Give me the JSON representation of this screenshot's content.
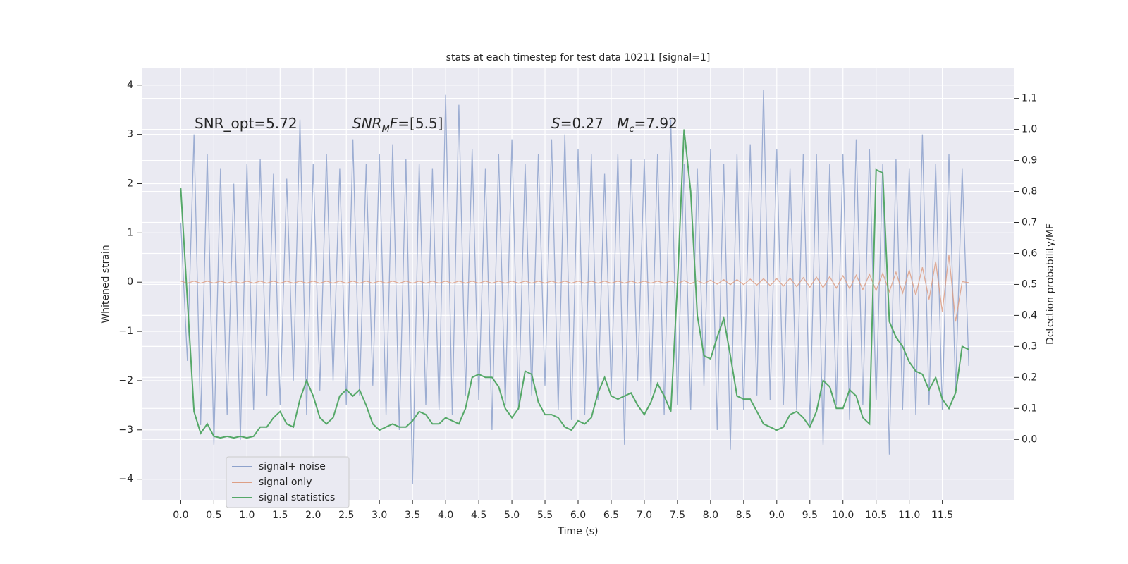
{
  "chart_data": {
    "type": "line",
    "title": "stats at each timestep for test data 10211 [signal=1]",
    "xlabel": "Time (s)",
    "ylabel": "Whitened strain",
    "y2label": "Detection probability/MF",
    "annotations": [
      [
        {
          "text": "SNR_opt=5.72"
        }
      ],
      [
        {
          "text": "SNR",
          "italic": true
        },
        {
          "text": "M",
          "italic": true,
          "sub": true
        },
        {
          "text": "F",
          "italic": true
        },
        {
          "text": "=[5.5]"
        }
      ],
      [
        {
          "text": "S",
          "italic": true
        },
        {
          "text": "=0.27   "
        },
        {
          "text": "M",
          "italic": true
        },
        {
          "text": "c",
          "italic": true,
          "sub": true
        },
        {
          "text": "=7.92"
        }
      ]
    ],
    "grid": true,
    "legend": "lower left",
    "xlim": [
      -0.59,
      12.59
    ],
    "ylim": [
      -4.42,
      4.34
    ],
    "y2lim": [
      -0.195,
      1.197
    ],
    "xticks": [
      {
        "value": 0,
        "label": "0.0"
      },
      0.5,
      {
        "value": 1,
        "label": "1.0"
      },
      1.5,
      {
        "value": 2,
        "label": "2.0"
      },
      2.5,
      {
        "value": 3,
        "label": "3.0"
      },
      3.5,
      {
        "value": 4,
        "label": "4.0"
      },
      4.5,
      {
        "value": 5,
        "label": "5.0"
      },
      5.5,
      {
        "value": 6,
        "label": "6.0"
      },
      6.5,
      {
        "value": 7,
        "label": "7.0"
      },
      7.5,
      {
        "value": 8,
        "label": "8.0"
      },
      8.5,
      {
        "value": 9,
        "label": "9.0"
      },
      9.5,
      {
        "value": 10,
        "label": "10.0"
      },
      10.5,
      {
        "value": 11,
        "label": "11.0"
      },
      11.5
    ],
    "yticks": [
      {
        "value": -4,
        "label": "−4"
      },
      {
        "value": -3,
        "label": "−3"
      },
      {
        "value": -2,
        "label": "−2"
      },
      {
        "value": -1,
        "label": "−1"
      },
      0,
      1,
      2,
      3,
      4
    ],
    "y2ticks": [
      {
        "value": 0,
        "label": "0.0"
      },
      0.1,
      0.2,
      0.3,
      0.4,
      0.5,
      0.6,
      0.7,
      0.8,
      0.9,
      {
        "value": 1,
        "label": "1.0"
      },
      1.1
    ],
    "x": [
      0,
      0.1,
      0.2,
      0.3,
      0.4,
      0.5,
      0.6,
      0.7,
      0.8,
      0.9,
      1,
      1.1,
      1.2,
      1.3,
      1.4,
      1.5,
      1.6,
      1.7,
      1.8,
      1.9,
      2,
      2.1,
      2.2,
      2.3,
      2.4,
      2.5,
      2.6,
      2.7,
      2.8,
      2.9,
      3,
      3.1,
      3.2,
      3.3,
      3.4,
      3.5,
      3.6,
      3.7,
      3.8,
      3.9,
      4,
      4.1,
      4.2,
      4.3,
      4.4,
      4.5,
      4.6,
      4.7,
      4.8,
      4.9,
      5,
      5.1,
      5.2,
      5.3,
      5.4,
      5.5,
      5.6,
      5.7,
      5.8,
      5.9,
      6,
      6.1,
      6.2,
      6.3,
      6.4,
      6.5,
      6.6,
      6.7,
      6.8,
      6.9,
      7,
      7.1,
      7.2,
      7.3,
      7.4,
      7.5,
      7.6,
      7.7,
      7.8,
      7.9,
      8,
      8.1,
      8.2,
      8.3,
      8.4,
      8.5,
      8.6,
      8.7,
      8.8,
      8.9,
      9,
      9.1,
      9.2,
      9.3,
      9.4,
      9.5,
      9.6,
      9.7,
      9.8,
      9.9,
      10,
      10.1,
      10.2,
      10.3,
      10.4,
      10.5,
      10.6,
      10.7,
      10.8,
      10.9,
      11,
      11.1,
      11.2,
      11.3,
      11.4,
      11.5,
      11.6,
      11.7,
      11.8,
      11.9
    ],
    "series": [
      {
        "name": "signal+ noise",
        "color": "#8ea2cc",
        "values": [
          1.2,
          -1.6,
          3.0,
          -2.9,
          2.6,
          -3.3,
          2.3,
          -2.7,
          2.0,
          -3.2,
          2.4,
          -2.6,
          2.5,
          -2.3,
          2.2,
          -2.5,
          2.1,
          -2.0,
          3.3,
          -2.7,
          2.4,
          -2.2,
          2.6,
          -2.0,
          2.3,
          -2.5,
          2.9,
          -2.3,
          2.4,
          -2.1,
          2.6,
          -2.7,
          2.8,
          -3.0,
          2.5,
          -4.1,
          2.4,
          -2.5,
          2.3,
          -2.6,
          3.8,
          -2.7,
          3.6,
          -2.3,
          2.7,
          -2.4,
          2.3,
          -3.0,
          2.6,
          -2.5,
          2.9,
          -2.6,
          2.4,
          -2.3,
          2.6,
          -2.1,
          2.9,
          -2.6,
          3.0,
          -2.8,
          2.7,
          -2.7,
          2.6,
          -2.4,
          2.2,
          -2.2,
          2.6,
          -3.3,
          2.5,
          -2.0,
          2.5,
          -2.3,
          2.6,
          -2.7,
          3.3,
          -2.5,
          2.4,
          -2.6,
          2.3,
          -2.1,
          2.7,
          -3.0,
          2.4,
          -3.4,
          2.6,
          -2.6,
          2.8,
          -2.3,
          3.9,
          -2.4,
          2.7,
          -2.5,
          2.3,
          -2.6,
          2.6,
          -2.9,
          2.6,
          -3.3,
          2.4,
          -2.5,
          2.6,
          -2.8,
          2.9,
          -2.5,
          2.7,
          -2.4,
          2.4,
          -3.5,
          2.5,
          -2.6,
          2.3,
          -2.7,
          3.0,
          -2.5,
          2.4,
          -2.6,
          2.6,
          -2.2,
          2.3,
          -1.7
        ]
      },
      {
        "name": "signal only",
        "color": "#dd9f85",
        "values": [
          0.02,
          -0.02,
          0.02,
          -0.02,
          0.02,
          -0.02,
          0.02,
          -0.02,
          0.02,
          -0.02,
          0.02,
          -0.02,
          0.02,
          -0.02,
          0.02,
          -0.02,
          0.02,
          -0.02,
          0.02,
          -0.02,
          0.02,
          -0.02,
          0.02,
          -0.02,
          0.02,
          -0.02,
          0.02,
          -0.02,
          0.02,
          -0.02,
          0.02,
          -0.02,
          0.02,
          -0.02,
          0.02,
          -0.02,
          0.02,
          -0.02,
          0.02,
          -0.02,
          0.02,
          -0.02,
          0.02,
          -0.02,
          0.02,
          -0.02,
          0.02,
          -0.02,
          0.02,
          -0.02,
          0.02,
          -0.02,
          0.02,
          -0.02,
          0.02,
          -0.02,
          0.02,
          -0.02,
          0.02,
          -0.02,
          0.02,
          -0.02,
          0.02,
          -0.02,
          0.02,
          -0.02,
          0.02,
          -0.02,
          0.02,
          -0.02,
          0.02,
          -0.02,
          0.02,
          -0.02,
          0.02,
          -0.03,
          0.03,
          -0.03,
          0.03,
          -0.03,
          0.04,
          -0.04,
          0.05,
          -0.05,
          0.05,
          -0.05,
          0.06,
          -0.06,
          0.07,
          -0.07,
          0.07,
          -0.08,
          0.08,
          -0.09,
          0.09,
          -0.1,
          0.1,
          -0.11,
          0.11,
          -0.12,
          0.13,
          -0.13,
          0.14,
          -0.15,
          0.16,
          -0.17,
          0.18,
          -0.19,
          0.2,
          -0.22,
          0.24,
          -0.26,
          0.3,
          -0.35,
          0.42,
          -0.6,
          0.55,
          -0.8,
          0.01,
          -0.01
        ]
      },
      {
        "name": "signal statistics",
        "color": "#55a868",
        "axis": "y2",
        "values": [
          0.81,
          0.45,
          0.09,
          0.02,
          0.05,
          0.01,
          0.005,
          0.01,
          0.005,
          0.01,
          0.005,
          0.01,
          0.04,
          0.04,
          0.07,
          0.09,
          0.05,
          0.04,
          0.13,
          0.19,
          0.14,
          0.07,
          0.05,
          0.07,
          0.14,
          0.16,
          0.14,
          0.16,
          0.11,
          0.05,
          0.03,
          0.04,
          0.05,
          0.04,
          0.04,
          0.06,
          0.09,
          0.08,
          0.05,
          0.05,
          0.07,
          0.06,
          0.05,
          0.1,
          0.2,
          0.21,
          0.2,
          0.2,
          0.17,
          0.1,
          0.07,
          0.1,
          0.22,
          0.21,
          0.12,
          0.08,
          0.08,
          0.07,
          0.04,
          0.03,
          0.06,
          0.05,
          0.07,
          0.15,
          0.2,
          0.14,
          0.13,
          0.14,
          0.15,
          0.11,
          0.08,
          0.12,
          0.18,
          0.14,
          0.09,
          0.5,
          1.0,
          0.8,
          0.4,
          0.27,
          0.26,
          0.33,
          0.39,
          0.27,
          0.14,
          0.13,
          0.13,
          0.09,
          0.05,
          0.04,
          0.03,
          0.04,
          0.08,
          0.09,
          0.07,
          0.04,
          0.09,
          0.19,
          0.17,
          0.1,
          0.1,
          0.16,
          0.14,
          0.07,
          0.05,
          0.87,
          0.86,
          0.38,
          0.33,
          0.3,
          0.25,
          0.22,
          0.21,
          0.16,
          0.2,
          0.13,
          0.1,
          0.15,
          0.3,
          0.29
        ]
      }
    ]
  }
}
